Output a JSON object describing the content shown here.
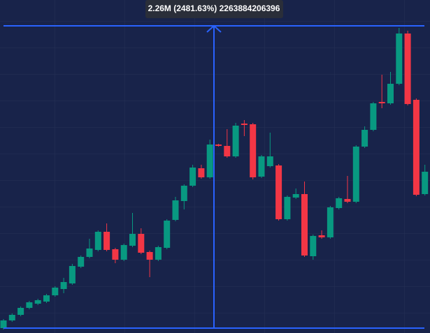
{
  "chart_data": {
    "type": "candlestick",
    "annotation": "2.26M (2481.63%) 2263884206396",
    "up_color": "#089981",
    "down_color": "#f23645",
    "measure_color": "#2962ff",
    "measure_range": [
      0,
      433
    ],
    "ylim": [
      -7,
      470
    ],
    "open": [
      0,
      11,
      19,
      29,
      35,
      38,
      47,
      56,
      64,
      88,
      102,
      112,
      138,
      113,
      98,
      118,
      135,
      109,
      98,
      115,
      155,
      182,
      204,
      229,
      216,
      263,
      261,
      246,
      293,
      292,
      217,
      232,
      233,
      156,
      187,
      192,
      103,
      133,
      130,
      172,
      185,
      181,
      260,
      284,
      324,
      322,
      350,
      422,
      327,
      192
    ],
    "high": [
      13,
      21,
      31,
      39,
      42,
      49,
      60,
      72,
      92,
      104,
      128,
      140,
      150,
      115,
      121,
      165,
      143,
      111,
      118,
      156,
      188,
      206,
      234,
      234,
      270,
      264,
      285,
      294,
      298,
      294,
      248,
      280,
      235,
      190,
      200,
      210,
      134,
      140,
      175,
      188,
      218,
      262,
      289,
      324,
      363,
      367,
      430,
      426,
      329,
      234
    ],
    "low": [
      -2,
      9,
      17,
      27,
      33,
      36,
      45,
      50,
      62,
      86,
      100,
      110,
      110,
      93,
      96,
      116,
      106,
      73,
      96,
      113,
      153,
      170,
      202,
      214,
      214,
      260,
      244,
      244,
      275,
      213,
      215,
      230,
      154,
      154,
      185,
      102,
      98,
      128,
      128,
      170,
      179,
      179,
      258,
      282,
      315,
      320,
      348,
      319,
      189,
      190
    ],
    "close": [
      11,
      19,
      29,
      37,
      40,
      47,
      58,
      66,
      89,
      102,
      114,
      138,
      112,
      98,
      119,
      135,
      108,
      98,
      116,
      154,
      183,
      204,
      230,
      216,
      263,
      261,
      246,
      290,
      291,
      216,
      246,
      246,
      156,
      188,
      192,
      104,
      132,
      130,
      173,
      186,
      181,
      260,
      284,
      322,
      322,
      350,
      422,
      321,
      191,
      224
    ]
  }
}
